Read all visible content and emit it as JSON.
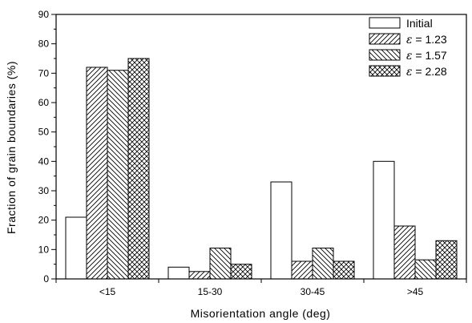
{
  "chart_data": {
    "type": "bar",
    "categories": [
      "<15",
      "15-30",
      "30-45",
      ">45"
    ],
    "series": [
      {
        "name": "Initial",
        "values": [
          21,
          4,
          33,
          40
        ],
        "pattern": "none"
      },
      {
        "name": "1.23",
        "values": [
          72,
          2.5,
          6,
          18
        ],
        "pattern": "hatch-forward"
      },
      {
        "name": "1.57",
        "values": [
          71,
          10.5,
          10.5,
          6.5
        ],
        "pattern": "hatch-back"
      },
      {
        "name": "2.28",
        "values": [
          75,
          5,
          6,
          13
        ],
        "pattern": "crosshatch"
      }
    ],
    "legend_prefix": "ε = ",
    "xlabel": "Misorientation angle (deg)",
    "ylabel": "Fraction of grain boundaries (%)",
    "ylim": [
      0,
      90
    ],
    "yticks": [
      0,
      10,
      20,
      30,
      40,
      50,
      60,
      70,
      80,
      90
    ],
    "grid": false,
    "legend_position": "top-right",
    "colors": {
      "stroke": "#000000",
      "fill": "#ffffff"
    }
  }
}
